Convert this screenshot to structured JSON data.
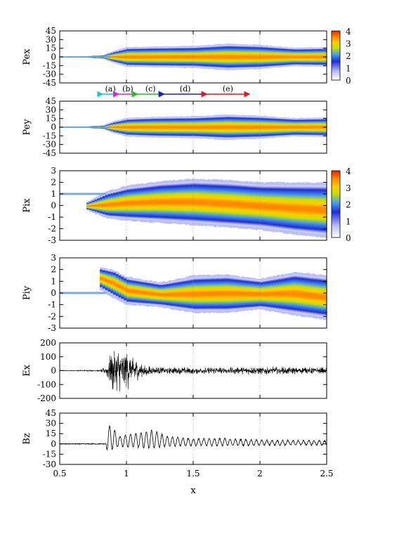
{
  "colors": {
    "colormap": [
      "#ffffff",
      "#b8bcf2",
      "#1e2cd8",
      "#4aa0e8",
      "#c8e000",
      "#ffcc00",
      "#ff8a00",
      "#f02000"
    ],
    "line": "#000000",
    "beam": "#7aa8e0",
    "phase_markers": [
      "#19c3c8",
      "#e020e0",
      "#22c022",
      "#1a20c0",
      "#e01818"
    ]
  },
  "chart_data": [
    {
      "id": "pex",
      "type": "heatmap",
      "ylabel": "Pex",
      "xlim": [
        0.5,
        2.5
      ],
      "ylim": [
        -45,
        45
      ],
      "yticks": [
        -45,
        -30,
        -15,
        0,
        15,
        30,
        45
      ],
      "yticklabels": [
        "-45",
        "-30",
        "-15",
        "0",
        "15",
        "30",
        "45"
      ],
      "xticks": [
        0.5,
        1,
        1.5,
        2,
        2.5
      ],
      "colorbar": {
        "range": [
          0,
          4
        ],
        "ticklabels": [
          "0",
          "1",
          "2",
          "3",
          "4"
        ]
      },
      "envelope": {
        "x": [
          0.5,
          0.7,
          0.82,
          0.9,
          1.0,
          1.2,
          1.5,
          1.75,
          2.0,
          2.25,
          2.5
        ],
        "half_width": [
          1,
          1.5,
          3,
          10,
          17,
          18,
          19,
          23,
          21,
          16,
          17
        ]
      }
    },
    {
      "id": "pey",
      "type": "heatmap",
      "ylabel": "Pey",
      "xlim": [
        0.5,
        2.5
      ],
      "ylim": [
        -45,
        45
      ],
      "yticks": [
        -45,
        -30,
        -15,
        0,
        15,
        30,
        45
      ],
      "yticklabels": [
        "-45",
        "-30",
        "-15",
        "0",
        "15",
        "30",
        "45"
      ],
      "xticks": [
        0.5,
        1,
        1.5,
        2,
        2.5
      ],
      "phase_markers": [
        {
          "label": "(a)",
          "from": 0.82,
          "to": 0.94
        },
        {
          "label": "(b)",
          "from": 0.94,
          "to": 1.08
        },
        {
          "label": "(c)",
          "from": 1.08,
          "to": 1.28
        },
        {
          "label": "(d)",
          "from": 1.28,
          "to": 1.6
        },
        {
          "label": "(e)",
          "from": 1.6,
          "to": 1.92
        }
      ],
      "envelope": {
        "x": [
          0.5,
          0.7,
          0.82,
          0.9,
          1.0,
          1.2,
          1.5,
          1.75,
          2.0,
          2.25,
          2.5
        ],
        "half_width": [
          1,
          1.5,
          3,
          10,
          16,
          18,
          19,
          22,
          20,
          16,
          17
        ]
      }
    },
    {
      "id": "pix",
      "type": "heatmap",
      "ylabel": "Pix",
      "xlim": [
        0.5,
        2.5
      ],
      "ylim": [
        -3,
        3
      ],
      "yticks": [
        -3,
        -2,
        -1,
        0,
        1,
        2,
        3
      ],
      "yticklabels": [
        "-3",
        "-2",
        "-1",
        "0",
        "1",
        "2",
        "3"
      ],
      "xticks": [
        0.5,
        1,
        1.5,
        2,
        2.5
      ],
      "colorbar": {
        "range": [
          0,
          4
        ],
        "ticklabels": [
          "0",
          "1",
          "2",
          "3",
          "4"
        ]
      },
      "beam": {
        "from": 0.5,
        "to": 0.85,
        "value": 1
      },
      "envelope": {
        "x": [
          0.7,
          0.85,
          1.0,
          1.25,
          1.5,
          1.75,
          2.0,
          2.25,
          2.5
        ],
        "upper": [
          0.3,
          1.2,
          1.7,
          2.1,
          2.3,
          2.2,
          2.0,
          2.0,
          2.0
        ],
        "lower": [
          -0.4,
          -1.1,
          -1.3,
          -1.5,
          -1.7,
          -1.9,
          -2.1,
          -2.5,
          -2.8
        ]
      }
    },
    {
      "id": "piy",
      "type": "heatmap",
      "ylabel": "Piy",
      "xlim": [
        0.5,
        2.5
      ],
      "ylim": [
        -3,
        3
      ],
      "yticks": [
        -3,
        -2,
        -1,
        0,
        1,
        2,
        3
      ],
      "yticklabels": [
        "-3",
        "-2",
        "-1",
        "0",
        "1",
        "2",
        "3"
      ],
      "xticks": [
        0.5,
        1,
        1.5,
        2,
        2.5
      ],
      "beam": {
        "from": 0.5,
        "to": 0.85,
        "value": 0
      },
      "envelope": {
        "x": [
          0.8,
          0.9,
          1.0,
          1.25,
          1.5,
          1.75,
          2.0,
          2.25,
          2.5
        ],
        "upper": [
          2.2,
          2.0,
          1.4,
          0.9,
          1.5,
          1.6,
          1.2,
          1.8,
          1.5
        ],
        "lower": [
          0.3,
          -0.4,
          -1.0,
          -1.2,
          -1.7,
          -1.7,
          -1.4,
          -1.9,
          -2.3
        ]
      }
    },
    {
      "id": "ex",
      "type": "line",
      "ylabel": "Ex",
      "xlim": [
        0.5,
        2.5
      ],
      "ylim": [
        -200,
        200
      ],
      "yticks": [
        -200,
        -100,
        0,
        100,
        200
      ],
      "yticklabels": [
        "-200",
        "-100",
        "0",
        "100",
        "200"
      ],
      "xticks": [
        0.5,
        1,
        1.5,
        2,
        2.5
      ],
      "amplitude": {
        "x": [
          0.5,
          0.8,
          0.85,
          0.9,
          1.0,
          1.1,
          1.2,
          1.5,
          2.0,
          2.5
        ],
        "y": [
          3,
          5,
          40,
          170,
          150,
          60,
          30,
          25,
          30,
          25
        ]
      }
    },
    {
      "id": "bz",
      "type": "line",
      "ylabel": "Bz",
      "xlim": [
        0.5,
        2.5
      ],
      "ylim": [
        -30,
        45
      ],
      "yticks": [
        -30,
        -15,
        0,
        15,
        30,
        45
      ],
      "yticklabels": [
        "-30",
        "-15",
        "0",
        "15",
        "30",
        "45"
      ],
      "xticks": [
        0.5,
        1,
        1.5,
        2,
        2.5
      ],
      "xticklabels": [
        "0.5",
        "1",
        "1.5",
        "2",
        "2.5"
      ],
      "xlabel": "x",
      "peaks": {
        "x": [
          0.88,
          0.9,
          0.95,
          1.0,
          1.1,
          1.2,
          1.3,
          1.5,
          1.7,
          2.0,
          2.5
        ],
        "amp": [
          30,
          25,
          12,
          15,
          18,
          22,
          12,
          8,
          9,
          6,
          5
        ]
      }
    }
  ]
}
